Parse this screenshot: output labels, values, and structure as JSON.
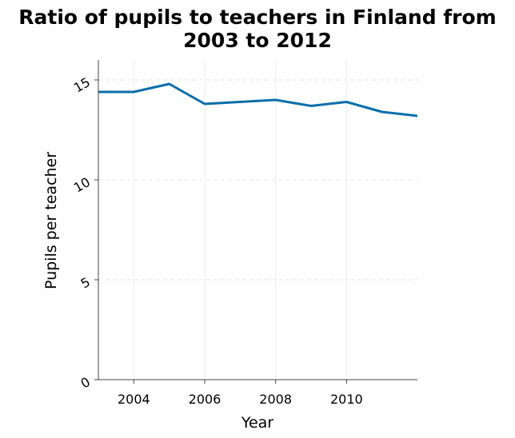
{
  "chart_data": {
    "type": "line",
    "title_lines": [
      "Ratio of pupils to teachers in Finland from",
      "2003 to 2012"
    ],
    "xlabel": "Year",
    "ylabel": "Pupils per teacher",
    "xlim": [
      2003,
      2012
    ],
    "ylim": [
      0,
      16
    ],
    "x_ticks": [
      2004,
      2006,
      2008,
      2010
    ],
    "y_ticks": [
      0,
      5,
      10,
      15
    ],
    "grid": true,
    "series": [
      {
        "x": [
          2003,
          2004,
          2005,
          2006,
          2007,
          2008,
          2009,
          2010,
          2011,
          2012
        ],
        "y": [
          14.4,
          14.4,
          14.8,
          13.8,
          13.9,
          14.0,
          13.7,
          13.9,
          13.4,
          13.2
        ],
        "color": "#0a6eaa"
      }
    ]
  }
}
